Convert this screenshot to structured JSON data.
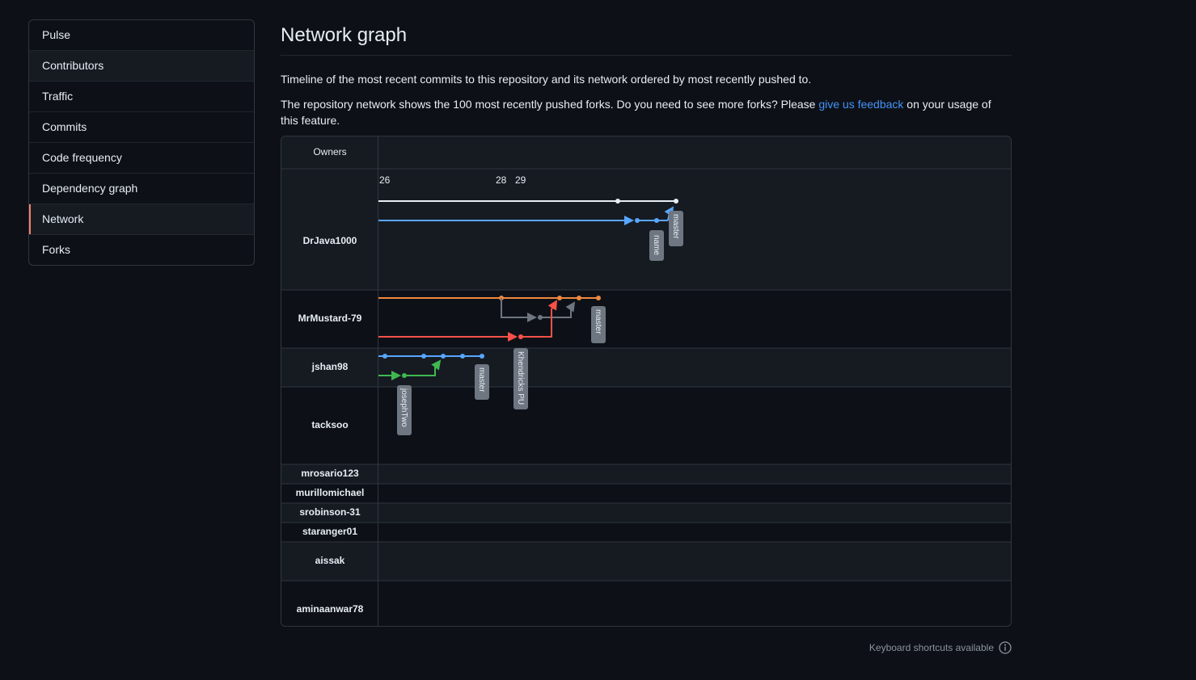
{
  "sidebar": {
    "items": [
      {
        "label": "Pulse"
      },
      {
        "label": "Contributors"
      },
      {
        "label": "Traffic"
      },
      {
        "label": "Commits"
      },
      {
        "label": "Code frequency"
      },
      {
        "label": "Dependency graph"
      },
      {
        "label": "Network"
      },
      {
        "label": "Forks"
      }
    ],
    "selected": "Network",
    "accent_color": "#f78166"
  },
  "page": {
    "title": "Network graph",
    "description": "Timeline of the most recent commits to this repository and its network ordered by most recently pushed to.",
    "forks_note_before": "The repository network shows the 100 most recently pushed forks. Do you need to see more forks? Please ",
    "feedback_link": "give us feedback",
    "forks_note_after": " on your usage of this feature."
  },
  "graph": {
    "owners_header": "Owners",
    "date_labels": [
      "26",
      "28",
      "29"
    ],
    "owners": [
      "DrJava1000",
      "MrMustard-79",
      "jshan98",
      "tacksoo",
      "mrosario123",
      "murillomichael",
      "srobinson-31",
      "staranger01",
      "aissak",
      "aminaanwar78"
    ],
    "branch_labels": {
      "drjava_master": "master",
      "drjava_name": "name",
      "mustard_master": "master",
      "khendricks": "Khendricks PU",
      "jshan_master": "master",
      "josephtwo": "josephTwo"
    },
    "colors": {
      "white": "#e6edf3",
      "blue": "#58a6ff",
      "orange": "#f0883e",
      "red": "#f85149",
      "slate": "#6e7681",
      "green": "#3fb950",
      "label_bg": "#6e7681"
    }
  },
  "footer": {
    "shortcuts": "Keyboard shortcuts available"
  }
}
